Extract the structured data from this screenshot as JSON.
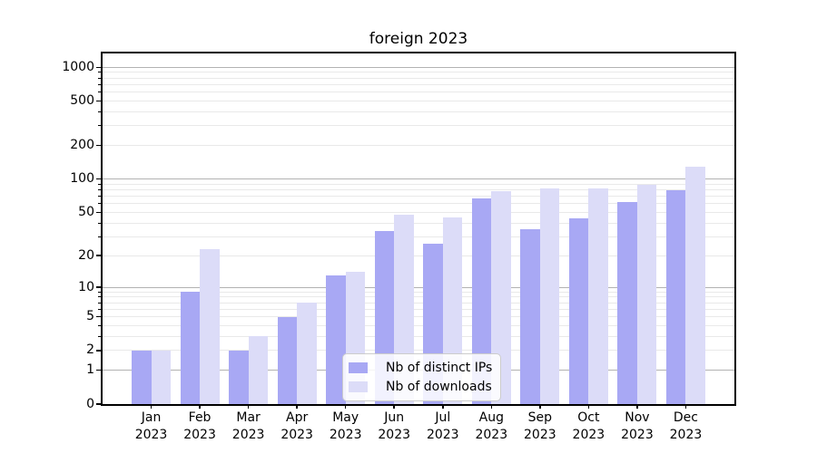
{
  "title": "foreign 2023",
  "colors": {
    "ips_bar": "#a8a8f4",
    "downloads_bar": "#dcdcf8",
    "grid_major": "#b2b2b2",
    "grid_minor": "#e9e9e9",
    "axis": "#000000",
    "legend_border": "#cccccc"
  },
  "legend": {
    "items": [
      {
        "label": "Nb of distinct IPs",
        "color": "#a8a8f4"
      },
      {
        "label": "Nb of downloads",
        "color": "#dcdcf8"
      }
    ]
  },
  "chart_data": {
    "type": "bar",
    "title": "foreign 2023",
    "categories": [
      "Jan 2023",
      "Feb 2023",
      "Mar 2023",
      "Apr 2023",
      "May 2023",
      "Jun 2023",
      "Jul 2023",
      "Aug 2023",
      "Sep 2023",
      "Oct 2023",
      "Nov 2023",
      "Dec 2023"
    ],
    "x_tick_line1": [
      "Jan",
      "Feb",
      "Mar",
      "Apr",
      "May",
      "Jun",
      "Jul",
      "Aug",
      "Sep",
      "Oct",
      "Nov",
      "Dec"
    ],
    "x_tick_line2": "2023",
    "series": [
      {
        "name": "Nb of distinct IPs",
        "color": "#a8a8f4",
        "values": [
          2,
          9,
          2,
          5,
          13,
          34,
          26,
          67,
          35,
          44,
          62,
          80
        ]
      },
      {
        "name": "Nb of downloads",
        "color": "#dcdcf8",
        "values": [
          2,
          23,
          3,
          7,
          14,
          48,
          45,
          78,
          82,
          83,
          89,
          130
        ]
      }
    ],
    "yscale": "log1p",
    "ylim": [
      0,
      1330
    ],
    "y_tick_values": [
      0,
      1,
      2,
      5,
      10,
      20,
      50,
      100,
      200,
      500,
      1000
    ],
    "y_tick_labels": [
      "0",
      "1",
      "2",
      "5",
      "10",
      "20",
      "50",
      "100",
      "200",
      "500",
      "1000"
    ],
    "y_major_gridlines": [
      1,
      10,
      100,
      1000
    ],
    "grid": true,
    "legend_position": "lower center inside axes"
  }
}
